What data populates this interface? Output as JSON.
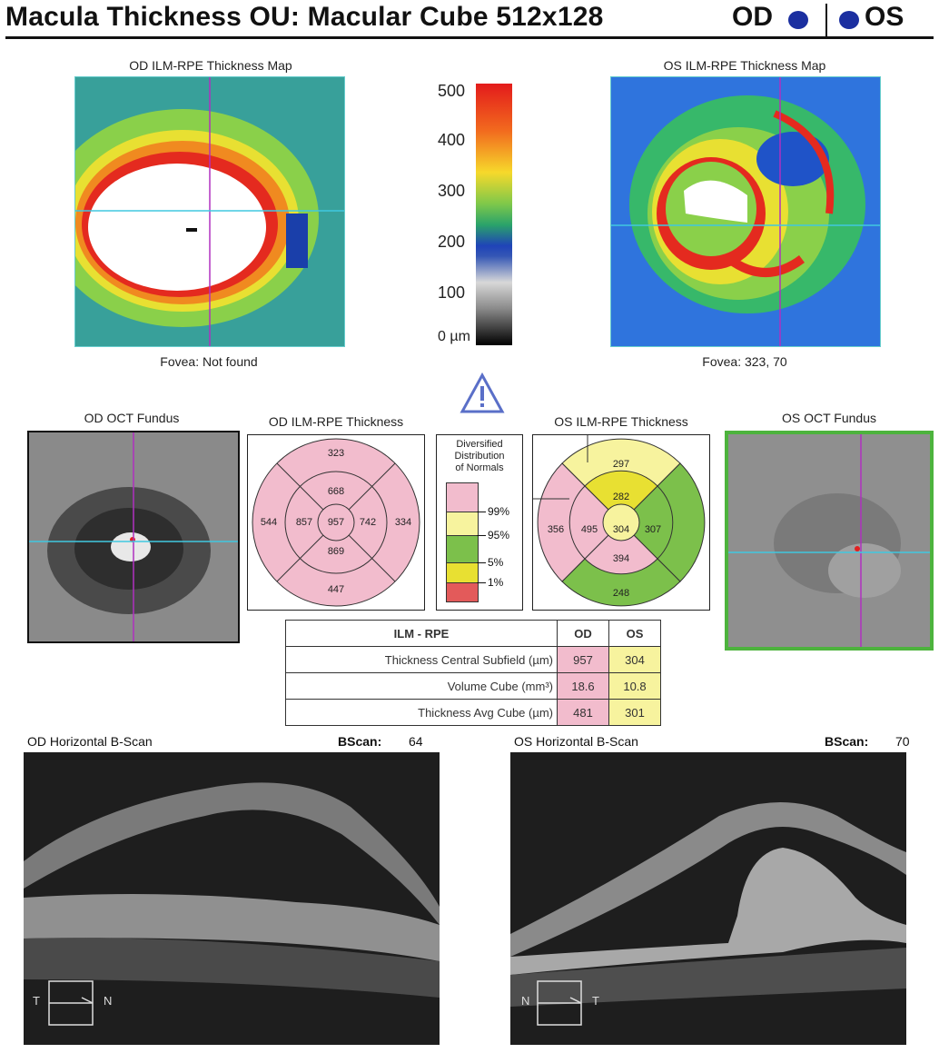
{
  "header": {
    "title": "Macula Thickness OU: Macular Cube 512x128",
    "od_label": "OD",
    "os_label": "OS",
    "od_color": "#1b2fa0",
    "os_color": "#1b2fa0"
  },
  "maps": {
    "od_title": "OD ILM-RPE Thickness Map",
    "os_title": "OS ILM-RPE Thickness Map",
    "od_fovea": "Fovea: Not found",
    "os_fovea": "Fovea: 323, 70"
  },
  "colorbar": {
    "ticks": [
      "500",
      "400",
      "300",
      "200",
      "100",
      "0 µm"
    ],
    "warning_icon": "warning-triangle-icon"
  },
  "fundus": {
    "od_title": "OD OCT Fundus",
    "os_title": "OS OCT Fundus"
  },
  "sectors": {
    "od_title": "OD ILM-RPE Thickness",
    "os_title": "OS ILM-RPE Thickness",
    "od": {
      "outer_superior": "323",
      "outer_nasal": "334",
      "outer_inferior": "447",
      "outer_temporal": "544",
      "inner_superior": "668",
      "inner_nasal": "742",
      "inner_inferior": "869",
      "inner_temporal": "857",
      "central": "957"
    },
    "os": {
      "outer_superior": "297",
      "outer_nasal": "",
      "outer_inferior": "248",
      "outer_temporal": "356",
      "inner_superior": "282",
      "inner_nasal": "307",
      "inner_inferior": "394",
      "inner_temporal": "495",
      "central": "304"
    }
  },
  "legend": {
    "title_lines": [
      "Diversified",
      "Distribution",
      "of Normals"
    ],
    "levels": [
      "99%",
      "95%",
      "5%",
      "1%"
    ],
    "colors": [
      "#f2bccd",
      "#f7f39e",
      "#7cc04b",
      "#e8e032",
      "#e35a5a"
    ]
  },
  "table": {
    "header": [
      "ILM - RPE",
      "OD",
      "OS"
    ],
    "rows": [
      {
        "label": "Thickness Central Subfield (µm)",
        "od": "957",
        "os": "304"
      },
      {
        "label": "Volume Cube (mm³)",
        "od": "18.6",
        "os": "10.8"
      },
      {
        "label": "Thickness Avg Cube (µm)",
        "od": "481",
        "os": "301"
      }
    ],
    "od_color": "#f2bccd",
    "os_color": "#f7f39e"
  },
  "bscan": {
    "od_title": "OD Horizontal B-Scan",
    "os_title": "OS Horizontal B-Scan",
    "bscan_label": "BScan:",
    "od_number": "64",
    "os_number": "70",
    "od_orient_left": "T",
    "od_orient_right": "N",
    "os_orient_left": "N",
    "os_orient_right": "T"
  }
}
